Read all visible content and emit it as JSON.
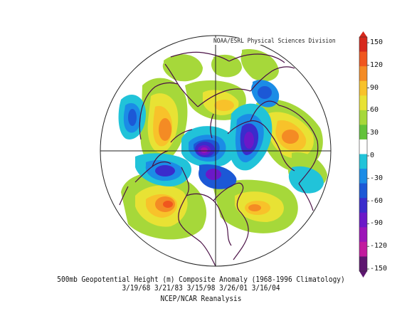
{
  "credit": "NOAA/ESRL Physical Sciences Division",
  "caption": {
    "line1": "500mb Geopotential Height (m) Composite Anomaly (1968-1996 Climatology)",
    "line2": "3/19/68 3/21/83 3/15/98 3/26/01 3/16/04",
    "line3": "NCEP/NCAR Reanalysis"
  },
  "colorbar": {
    "labels": [
      "150",
      "120",
      "90",
      "60",
      "30",
      "0",
      "-30",
      "-60",
      "-90",
      "-120",
      "-150"
    ],
    "colors": [
      "#d7281c",
      "#f0561e",
      "#f48b24",
      "#f8c22a",
      "#e8e234",
      "#a6d83a",
      "#62c23a",
      "#ffffff",
      "#21c3d9",
      "#1b8ce6",
      "#1c58d6",
      "#3a2ccc",
      "#6b18c8",
      "#9c14b8",
      "#c21a9e",
      "#5e1670"
    ]
  }
}
